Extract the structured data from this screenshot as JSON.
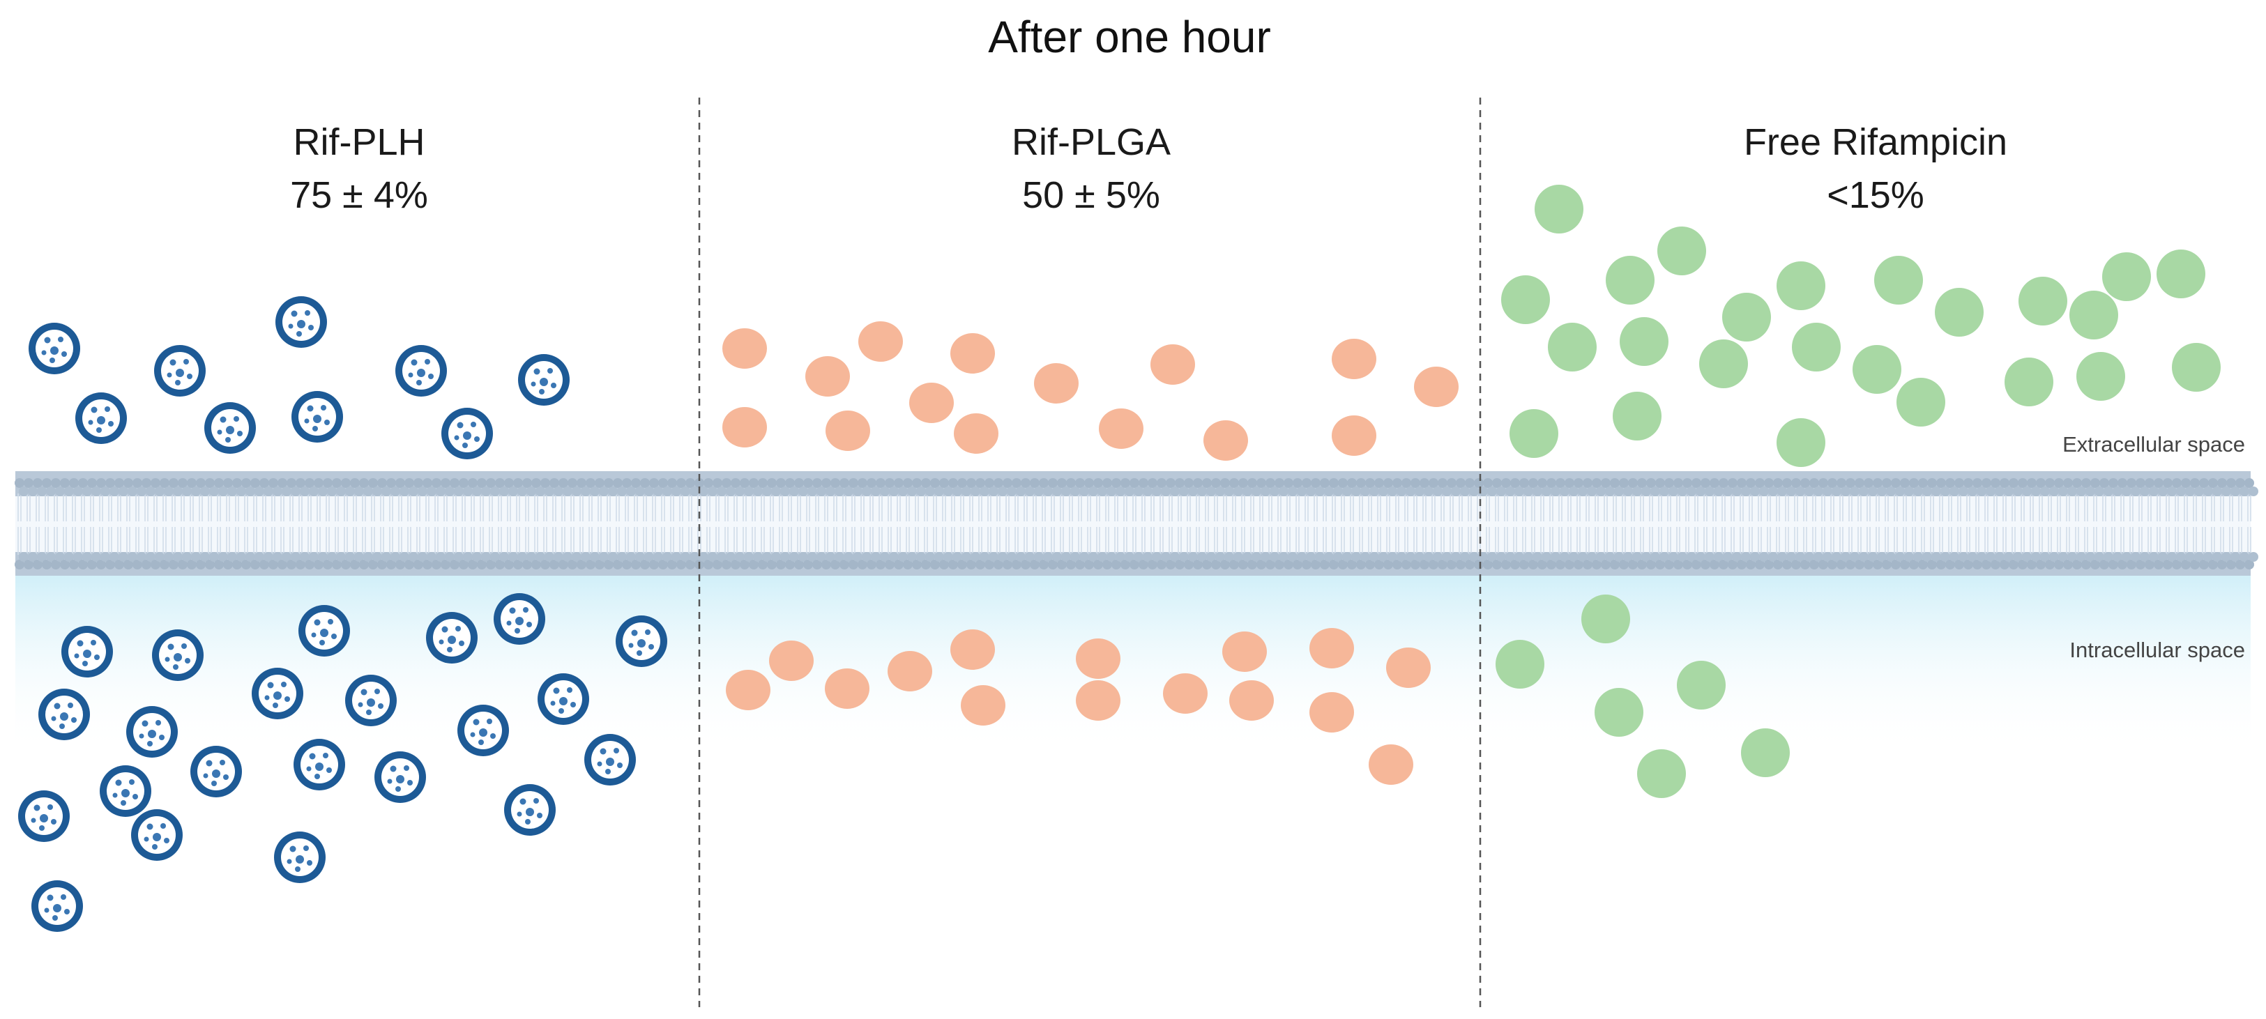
{
  "title": "After one hour",
  "panels": [
    {
      "name": "Rif-PLH",
      "value": "75 ± 4%",
      "particle": "nanoparticle-with-core",
      "color": "#1d5a96"
    },
    {
      "name": "Rif-PLGA",
      "value": "50 ± 5%",
      "particle": "oval",
      "color": "#f6b799"
    },
    {
      "name": "Free Rifampicin",
      "value": "<15%",
      "particle": "circle",
      "color": "#a8d8a4"
    }
  ],
  "regions": {
    "extracellular": "Extracellular space",
    "intracellular": "Intracellular space"
  },
  "colors": {
    "membrane_head": "#a4b6c8",
    "membrane_tail": "#d0dde9",
    "intracellular_tint": "#cdeef8"
  }
}
